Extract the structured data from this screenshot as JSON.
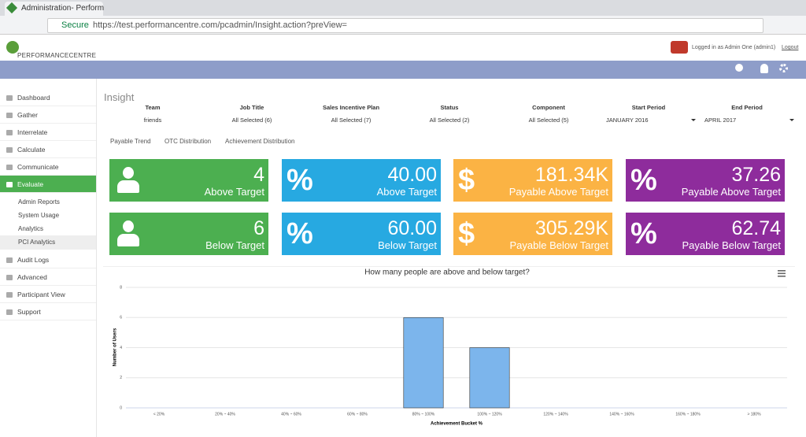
{
  "browser": {
    "tab_title": "Administration- Perform",
    "secure": "Secure",
    "url": "https://test.performancentre.com/pcadmin/Insight.action?preView="
  },
  "header": {
    "logo": "PERFORMANCECENTRE",
    "logged_in": "Logged in as Admin One (admin1)",
    "logout": "Logout"
  },
  "sidebar": {
    "top": [
      "Dashboard",
      "Gather",
      "Interrelate",
      "Calculate",
      "Communicate",
      "Evaluate"
    ],
    "sub": [
      "Admin Reports",
      "System Usage",
      "Analytics",
      "PCI Analytics"
    ],
    "bottom": [
      "Audit Logs",
      "Advanced",
      "Participant View",
      "Support"
    ]
  },
  "page": {
    "title": "Insight",
    "filters": [
      {
        "label": "Team",
        "value": "friends"
      },
      {
        "label": "Job Title",
        "value": "All Selected (6)"
      },
      {
        "label": "Sales Incentive Plan",
        "value": "All Selected (7)"
      },
      {
        "label": "Status",
        "value": "All Selected (2)"
      },
      {
        "label": "Component",
        "value": "All Selected (5)"
      },
      {
        "label": "Start Period",
        "value": "JANUARY 2016"
      },
      {
        "label": "End Period",
        "value": "APRIL 2017"
      }
    ],
    "tabs": [
      "Payable Trend",
      "OTC Distribution",
      "Achievement Distribution"
    ],
    "tiles": [
      {
        "value": "4",
        "label": "Above Target"
      },
      {
        "icon": "%",
        "value": "40.00",
        "label": "Above Target"
      },
      {
        "icon": "$",
        "value": "181.34K",
        "label": "Payable Above Target"
      },
      {
        "icon": "%",
        "value": "37.26",
        "label": "Payable Above Target"
      },
      {
        "value": "6",
        "label": "Below Target"
      },
      {
        "icon": "%",
        "value": "60.00",
        "label": "Below Target"
      },
      {
        "icon": "$",
        "value": "305.29K",
        "label": "Payable Below Target"
      },
      {
        "icon": "%",
        "value": "62.74",
        "label": "Payable Below Target"
      }
    ]
  },
  "chart_data": {
    "type": "bar",
    "title": "How many people are above and below target?",
    "y_label": "Number of Users",
    "x_label": "Achievement Bucket %",
    "categories": [
      "< 20%",
      "20% ~ 40%",
      "40% ~ 60%",
      "60% ~ 80%",
      "80% ~ 100%",
      "100% ~ 120%",
      "120% ~ 140%",
      "140% ~ 160%",
      "160% ~ 180%",
      "> 180%"
    ],
    "values": [
      0,
      0,
      0,
      0,
      6,
      4,
      0,
      0,
      0,
      0
    ],
    "color": "#7cb5ec",
    "ylim": [
      0,
      8
    ],
    "yticks": [
      0,
      2,
      4,
      6,
      8
    ],
    "grid": true
  }
}
